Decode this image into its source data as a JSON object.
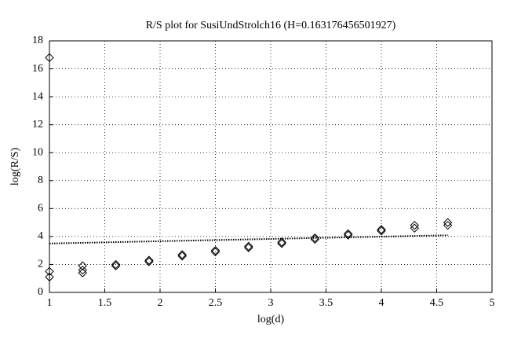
{
  "chart_data": {
    "type": "scatter",
    "title": "R/S plot for SusiUndStrolch16 (H=0.163176456501927)",
    "x_label": "log(d)",
    "y_label": "log(R/S)",
    "xlim": [
      1,
      5
    ],
    "xticks": [
      1,
      1.5,
      2,
      2.5,
      3,
      3.5,
      4,
      4.5,
      5
    ],
    "ylim": [
      0,
      18
    ],
    "yticks": [
      0,
      2,
      4,
      6,
      8,
      10,
      12,
      14,
      16,
      18
    ],
    "grid": true,
    "series": [
      {
        "type": "scatter",
        "marker": "diamond",
        "color": "#000000",
        "x": [
          1,
          1,
          1,
          1.3,
          1.3,
          1.3,
          1.6,
          1.6,
          1.9,
          1.9,
          2.2,
          2.2,
          2.5,
          2.5,
          2.8,
          2.8,
          3.1,
          3.1,
          3.4,
          3.4,
          3.7,
          3.7,
          4,
          4,
          4.3,
          4.3,
          4.6,
          4.6
        ],
        "values": [
          16.8,
          1.5,
          1.1,
          1.9,
          1.6,
          1.4,
          2.0,
          1.9,
          2.3,
          2.2,
          2.7,
          2.6,
          3.0,
          2.9,
          3.3,
          3.2,
          3.5,
          3.6,
          3.8,
          3.9,
          4.2,
          4.1,
          4.5,
          4.4,
          4.8,
          4.6,
          5.0,
          4.8
        ]
      },
      {
        "type": "line",
        "style": "dotted",
        "color": "#000000",
        "x": [
          1,
          4.6
        ],
        "values": [
          3.5,
          4.09
        ]
      }
    ]
  }
}
